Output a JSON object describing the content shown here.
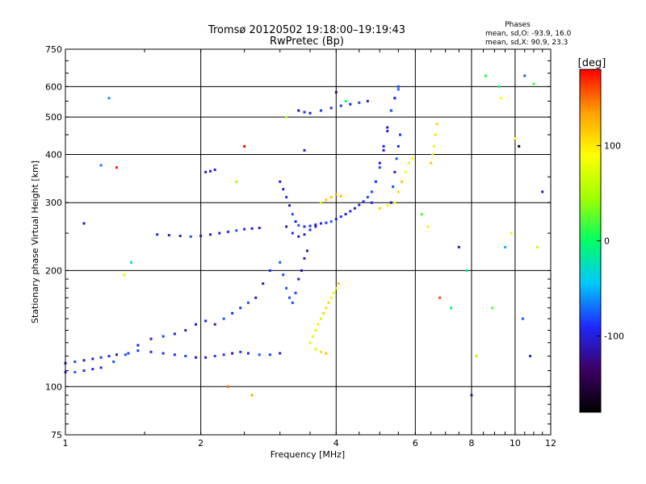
{
  "chart_data": {
    "type": "scatter",
    "title": "Tromsø 20120502 19:18:00–19:19:43",
    "subtitle": "RwPretec (Bp)",
    "xlabel": "Frequency [MHz]",
    "ylabel": "Stationary phase Virtual Height [km]",
    "x_scale": "log",
    "y_scale": "log",
    "xlim": [
      1,
      12
    ],
    "ylim": [
      75,
      750
    ],
    "x_ticks": [
      1,
      2,
      4,
      6,
      8,
      10,
      12
    ],
    "y_ticks": [
      75,
      100,
      200,
      300,
      400,
      500,
      600,
      750
    ],
    "grid": true,
    "color_variable": "phase",
    "colorbar": {
      "label": "[deg]",
      "ticks": [
        100,
        0,
        -100
      ],
      "range": [
        -180,
        180
      ],
      "colors": [
        "#000000",
        "#3c0064",
        "#1e28ff",
        "#00c8ff",
        "#00ff64",
        "#a0ff00",
        "#ffff00",
        "#ffa000",
        "#ff0000"
      ]
    },
    "phases_stats": {
      "heading": "Phases",
      "line1": "mean, sd,O:  -93.9, 16.0",
      "line2": "mean, sd,X:  90.9, 23.3"
    },
    "series": [
      {
        "mode": "O",
        "points": [
          [
            1.0,
            115
          ],
          [
            1.05,
            116
          ],
          [
            1.1,
            117
          ],
          [
            1.15,
            118
          ],
          [
            1.2,
            119
          ],
          [
            1.25,
            120
          ],
          [
            1.3,
            121
          ],
          [
            1.38,
            122
          ],
          [
            1.45,
            124
          ],
          [
            1.55,
            123
          ],
          [
            1.65,
            122
          ],
          [
            1.75,
            121
          ],
          [
            1.85,
            120
          ],
          [
            1.95,
            119
          ],
          [
            2.05,
            119
          ],
          [
            2.15,
            120
          ],
          [
            2.25,
            121
          ],
          [
            2.35,
            122
          ],
          [
            2.45,
            123
          ],
          [
            2.55,
            122
          ],
          [
            2.7,
            121
          ],
          [
            2.85,
            121
          ],
          [
            3.0,
            122
          ],
          [
            1.0,
            109
          ],
          [
            1.05,
            109
          ],
          [
            1.1,
            110
          ],
          [
            1.15,
            111
          ],
          [
            1.2,
            112
          ],
          [
            1.28,
            116
          ],
          [
            1.36,
            121
          ],
          [
            1.45,
            128
          ],
          [
            1.55,
            133
          ],
          [
            1.65,
            135
          ],
          [
            1.75,
            137
          ],
          [
            1.85,
            140
          ],
          [
            1.95,
            145
          ],
          [
            2.05,
            148
          ],
          [
            2.15,
            145
          ],
          [
            2.25,
            150
          ],
          [
            2.35,
            155
          ],
          [
            2.45,
            160
          ],
          [
            2.55,
            165
          ],
          [
            2.65,
            170
          ],
          [
            2.75,
            185
          ],
          [
            2.85,
            200
          ],
          [
            1.6,
            248
          ],
          [
            1.7,
            247
          ],
          [
            1.8,
            246
          ],
          [
            1.9,
            245
          ],
          [
            2.0,
            246
          ],
          [
            2.1,
            248
          ],
          [
            2.2,
            250
          ],
          [
            2.3,
            252
          ],
          [
            2.4,
            254
          ],
          [
            2.5,
            256
          ],
          [
            2.6,
            257
          ],
          [
            2.7,
            258
          ],
          [
            2.05,
            360
          ],
          [
            2.1,
            362
          ],
          [
            2.15,
            365
          ],
          [
            3.0,
            340
          ],
          [
            3.05,
            325
          ],
          [
            3.1,
            310
          ],
          [
            3.15,
            295
          ],
          [
            3.2,
            280
          ],
          [
            3.25,
            268
          ],
          [
            3.3,
            262
          ],
          [
            3.4,
            260
          ],
          [
            3.5,
            261
          ],
          [
            3.6,
            263
          ],
          [
            3.7,
            265
          ],
          [
            3.8,
            266
          ],
          [
            3.9,
            268
          ],
          [
            4.0,
            272
          ],
          [
            4.1,
            276
          ],
          [
            4.2,
            280
          ],
          [
            4.3,
            285
          ],
          [
            4.4,
            290
          ],
          [
            4.5,
            296
          ],
          [
            4.6,
            302
          ],
          [
            4.7,
            310
          ],
          [
            4.8,
            320
          ],
          [
            4.9,
            340
          ],
          [
            5.0,
            370
          ],
          [
            5.1,
            410
          ],
          [
            5.2,
            460
          ],
          [
            5.3,
            520
          ],
          [
            5.4,
            560
          ],
          [
            5.5,
            590
          ],
          [
            3.1,
            260
          ],
          [
            3.2,
            250
          ],
          [
            3.3,
            245
          ],
          [
            3.4,
            248
          ],
          [
            3.5,
            255
          ],
          [
            3.6,
            260
          ],
          [
            3.0,
            210
          ],
          [
            3.05,
            195
          ],
          [
            3.1,
            180
          ],
          [
            3.15,
            170
          ],
          [
            3.2,
            165
          ],
          [
            3.25,
            175
          ],
          [
            3.3,
            190
          ],
          [
            3.35,
            200
          ],
          [
            3.4,
            215
          ],
          [
            3.45,
            225
          ],
          [
            3.3,
            520
          ],
          [
            3.4,
            515
          ],
          [
            3.5,
            512
          ],
          [
            3.7,
            520
          ],
          [
            3.9,
            528
          ],
          [
            4.1,
            535
          ],
          [
            4.3,
            540
          ],
          [
            4.5,
            545
          ],
          [
            4.7,
            550
          ],
          [
            4.8,
            300
          ],
          [
            4.9,
            340
          ],
          [
            5.0,
            380
          ],
          [
            5.1,
            420
          ],
          [
            5.2,
            470
          ],
          [
            5.3,
            520
          ],
          [
            5.4,
            560
          ],
          [
            5.5,
            600
          ],
          [
            5.3,
            300
          ],
          [
            5.35,
            330
          ],
          [
            5.4,
            360
          ],
          [
            5.45,
            390
          ],
          [
            5.5,
            420
          ],
          [
            5.55,
            450
          ]
        ]
      },
      {
        "mode": "X",
        "points": [
          [
            3.5,
            130
          ],
          [
            3.55,
            135
          ],
          [
            3.6,
            140
          ],
          [
            3.65,
            145
          ],
          [
            3.7,
            150
          ],
          [
            3.75,
            155
          ],
          [
            3.8,
            160
          ],
          [
            3.85,
            165
          ],
          [
            3.9,
            170
          ],
          [
            3.95,
            175
          ],
          [
            4.0,
            180
          ],
          [
            4.05,
            185
          ],
          [
            3.6,
            125
          ],
          [
            3.7,
            123
          ],
          [
            3.8,
            122
          ],
          [
            3.7,
            300
          ],
          [
            3.8,
            305
          ],
          [
            3.9,
            310
          ],
          [
            4.0,
            315
          ],
          [
            4.1,
            312
          ],
          [
            5.0,
            290
          ],
          [
            5.2,
            295
          ],
          [
            5.4,
            300
          ],
          [
            5.5,
            320
          ],
          [
            5.6,
            340
          ],
          [
            5.7,
            360
          ],
          [
            5.8,
            380
          ],
          [
            5.9,
            390
          ],
          [
            6.5,
            380
          ],
          [
            6.55,
            400
          ],
          [
            6.6,
            420
          ],
          [
            6.65,
            450
          ],
          [
            6.7,
            480
          ]
        ]
      },
      {
        "mode": "scattered",
        "points": [
          [
            1.25,
            560
          ],
          [
            1.35,
            195
          ],
          [
            1.4,
            210
          ],
          [
            1.1,
            265
          ],
          [
            1.2,
            375
          ],
          [
            1.3,
            370
          ],
          [
            2.5,
            420
          ],
          [
            2.4,
            340
          ],
          [
            2.6,
            95
          ],
          [
            2.3,
            100
          ],
          [
            3.4,
            410
          ],
          [
            3.1,
            500
          ],
          [
            4.0,
            580
          ],
          [
            4.2,
            550
          ],
          [
            6.2,
            280
          ],
          [
            6.4,
            260
          ],
          [
            6.8,
            170
          ],
          [
            7.2,
            160
          ],
          [
            7.5,
            230
          ],
          [
            7.8,
            200
          ],
          [
            8.0,
            95
          ],
          [
            8.2,
            120
          ],
          [
            8.6,
            640
          ],
          [
            8.9,
            160
          ],
          [
            9.2,
            600
          ],
          [
            9.3,
            560
          ],
          [
            9.5,
            230
          ],
          [
            10.0,
            440
          ],
          [
            10.2,
            420
          ],
          [
            10.5,
            640
          ],
          [
            11.0,
            610
          ],
          [
            11.5,
            320
          ],
          [
            9.8,
            250
          ],
          [
            10.4,
            150
          ],
          [
            10.8,
            120
          ],
          [
            11.2,
            230
          ]
        ]
      }
    ]
  }
}
